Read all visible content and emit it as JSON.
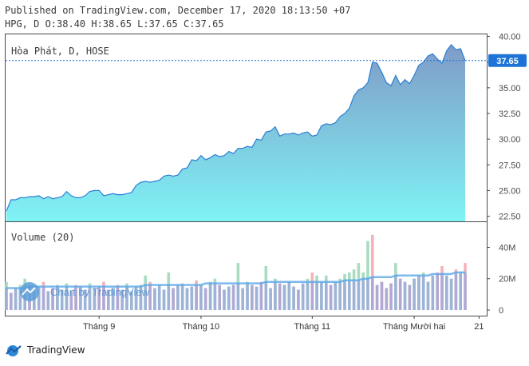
{
  "header": {
    "line1": "Published on TradingView.com, December 17, 2020 18:13:50 +07",
    "line2": "HPG, D O:38.40 H:38.65 L:37.65 C:37.65"
  },
  "price_pane": {
    "legend": "Hòa Phát, D, HOSE",
    "last_price_label": "37.65",
    "fill_top_color": "#7f9bc7",
    "fill_bottom_color": "#7ff3f5",
    "line_color": "#2a7fd4",
    "last_price_color": "#1e73d6"
  },
  "volume_pane": {
    "legend": "Volume (20)",
    "ma_color": "#5aa8e8",
    "up_color": "#a9dcc1",
    "down_color": "#f4b3b8",
    "bar_color": "#9aa6dd"
  },
  "watermark": {
    "text": "Chart by TradingView"
  },
  "footer": {
    "brand": "TradingView"
  },
  "chart_data": {
    "type": "area",
    "title": "Hòa Phát, D, HOSE",
    "x_axis": {
      "tick_labels": [
        "Tháng 9",
        "Tháng 10",
        "Tháng 11",
        "Tháng Mười hai",
        "21"
      ]
    },
    "price_axis": {
      "tick_labels": [
        "40.00",
        "37.50",
        "35.00",
        "32.50",
        "30.00",
        "27.50",
        "25.00",
        "22.50"
      ],
      "range": [
        22.0,
        40.2
      ],
      "last_price": 37.65
    },
    "volume_axis": {
      "tick_labels": [
        "40M",
        "20M",
        "0"
      ],
      "range": [
        0,
        54
      ]
    },
    "price_series": [
      23.0,
      24.1,
      24.1,
      24.3,
      24.3,
      24.4,
      24.4,
      24.5,
      24.2,
      24.4,
      24.2,
      24.3,
      24.4,
      24.9,
      24.5,
      24.3,
      24.3,
      24.5,
      24.9,
      25.0,
      25.0,
      24.5,
      24.6,
      24.7,
      24.6,
      24.6,
      24.7,
      24.8,
      25.5,
      25.8,
      25.9,
      25.8,
      25.9,
      26.0,
      26.4,
      26.5,
      26.4,
      26.5,
      27.1,
      27.2,
      28.0,
      27.9,
      28.4,
      28.0,
      28.2,
      28.5,
      28.3,
      28.4,
      28.8,
      28.6,
      29.1,
      29.1,
      29.3,
      29.2,
      30.0,
      29.9,
      30.7,
      30.8,
      31.2,
      30.3,
      30.5,
      30.5,
      30.6,
      30.4,
      30.6,
      30.7,
      30.3,
      30.4,
      31.3,
      31.5,
      31.4,
      31.6,
      32.2,
      32.5,
      33.0,
      34.2,
      34.8,
      35.0,
      35.5,
      37.5,
      37.4,
      36.5,
      35.5,
      35.2,
      36.2,
      35.3,
      35.8,
      35.4,
      36.2,
      37.2,
      37.5,
      38.1,
      38.3,
      37.8,
      37.4,
      38.6,
      39.2,
      38.7,
      38.8,
      37.65
    ],
    "volume_series": [
      18,
      11,
      14,
      16,
      20,
      16,
      12,
      15,
      18,
      12,
      14,
      16,
      13,
      17,
      12,
      16,
      15,
      13,
      17,
      14,
      15,
      18,
      13,
      14,
      16,
      13,
      17,
      12,
      15,
      16,
      22,
      18,
      14,
      16,
      13,
      24,
      14,
      16,
      17,
      14,
      15,
      19,
      16,
      14,
      18,
      20,
      16,
      13,
      15,
      16,
      30,
      14,
      18,
      16,
      15,
      18,
      28,
      14,
      20,
      17,
      16,
      18,
      15,
      13,
      17,
      20,
      24,
      22,
      18,
      22,
      16,
      18,
      20,
      23,
      24,
      26,
      30,
      24,
      44,
      48,
      16,
      18,
      14,
      17,
      30,
      20,
      18,
      16,
      20,
      22,
      24,
      18,
      22,
      24,
      28,
      22,
      20,
      26,
      24,
      30
    ],
    "volume_ma20": [
      14,
      14,
      14,
      14,
      14,
      15,
      15,
      15,
      15,
      15,
      15,
      15,
      15,
      15,
      15,
      15,
      15,
      15,
      15,
      15,
      15,
      15,
      15,
      15,
      15,
      15,
      15,
      15,
      15,
      15,
      16,
      16,
      16,
      16,
      16,
      16,
      16,
      16,
      16,
      16,
      16,
      16,
      16,
      17,
      17,
      17,
      17,
      17,
      17,
      17,
      17,
      17,
      17,
      17,
      17,
      17,
      18,
      18,
      18,
      18,
      18,
      18,
      18,
      18,
      18,
      18,
      18,
      18,
      18,
      18,
      18,
      18,
      18,
      19,
      19,
      19,
      19,
      20,
      20,
      21,
      21,
      21,
      21,
      21,
      22,
      22,
      22,
      22,
      22,
      22,
      22,
      22,
      23,
      23,
      23,
      23,
      23,
      24,
      24,
      24
    ],
    "volume_direction": [
      "up",
      "down",
      "up",
      "up",
      "up",
      "down",
      "up",
      "up",
      "down",
      "up",
      "down",
      "up",
      "up",
      "up",
      "down",
      "down",
      "up",
      "up",
      "up",
      "up",
      "down",
      "down",
      "up",
      "up",
      "down",
      "up",
      "up",
      "up",
      "up",
      "up",
      "up",
      "down",
      "up",
      "up",
      "up",
      "up",
      "down",
      "up",
      "up",
      "up",
      "up",
      "down",
      "up",
      "down",
      "up",
      "up",
      "down",
      "up",
      "up",
      "down",
      "up",
      "up",
      "up",
      "down",
      "up",
      "down",
      "up",
      "up",
      "up",
      "down",
      "up",
      "up",
      "up",
      "down",
      "up",
      "up",
      "down",
      "up",
      "up",
      "up",
      "down",
      "up",
      "up",
      "up",
      "up",
      "up",
      "up",
      "up",
      "up",
      "down",
      "down",
      "down",
      "down",
      "down",
      "up",
      "down",
      "up",
      "down",
      "up",
      "up",
      "up",
      "up",
      "up",
      "down",
      "down",
      "up",
      "up",
      "down",
      "up",
      "down"
    ]
  }
}
